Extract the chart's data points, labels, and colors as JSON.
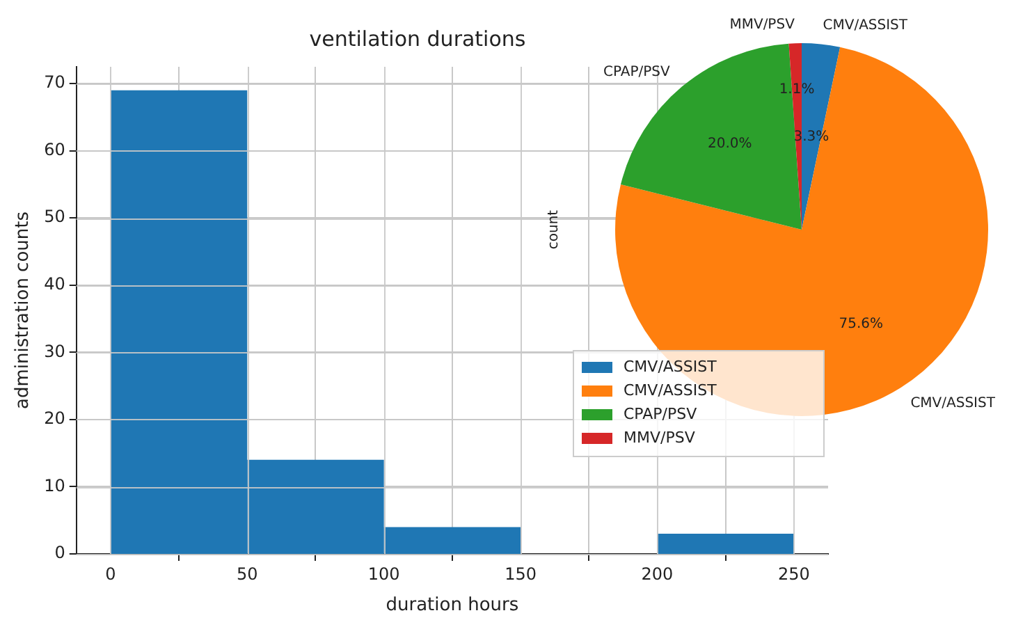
{
  "chart_data": [
    {
      "type": "histogram",
      "title": "ventilation durations",
      "xlabel": "duration hours",
      "ylabel": "administration counts",
      "bins": [
        0,
        50,
        100,
        150,
        200,
        250
      ],
      "values": [
        69,
        14,
        4,
        0,
        3
      ],
      "color": "#1f77b4",
      "xlim": [
        -12.5,
        262.5
      ],
      "ylim": [
        0,
        72.5
      ],
      "xticks": [
        0,
        50,
        100,
        150,
        200,
        250
      ],
      "yticks": [
        0,
        10,
        20,
        30,
        40,
        50,
        60,
        70
      ],
      "grid": true
    },
    {
      "type": "pie",
      "ylabel": "count",
      "categories": [
        "CMV/ASSIST",
        "CMV/ASSIST",
        "CPAP/PSV",
        "MMV/PSV"
      ],
      "values": [
        3.3,
        75.6,
        20.0,
        1.1
      ],
      "colors": [
        "#1f77b4",
        "#ff7f0e",
        "#2ca02c",
        "#d62728"
      ],
      "value_labels": [
        "3.3%",
        "75.6%",
        "20.0%",
        "1.1%"
      ],
      "legend": "bottom left"
    }
  ]
}
